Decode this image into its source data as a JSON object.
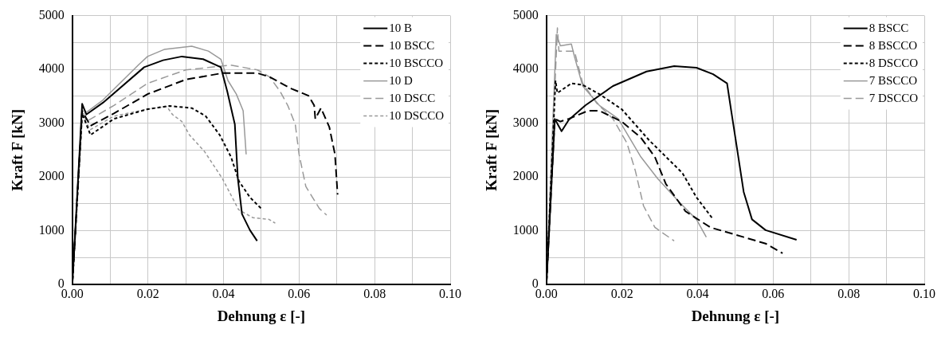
{
  "chart_data": [
    {
      "type": "line",
      "xlabel": "Dehnung ε [-]",
      "ylabel": "Kraft F [kN]",
      "xlim": [
        0,
        0.1
      ],
      "ylim": [
        0,
        5000
      ],
      "xticks": [
        {
          "value": 0,
          "label": "0.00"
        },
        {
          "value": 0.01,
          "label": null
        },
        {
          "value": 0.02,
          "label": "0.02"
        },
        {
          "value": 0.03,
          "label": null
        },
        {
          "value": 0.04,
          "label": "0.04"
        },
        {
          "value": 0.05,
          "label": null
        },
        {
          "value": 0.06,
          "label": "0.06"
        },
        {
          "value": 0.07,
          "label": null
        },
        {
          "value": 0.08,
          "label": "0.08"
        },
        {
          "value": 0.09,
          "label": null
        },
        {
          "value": 0.1,
          "label": "0.10"
        }
      ],
      "yticks": [
        0,
        {
          "value": 500,
          "label": null
        },
        1000,
        {
          "value": 1500,
          "label": null
        },
        2000,
        {
          "value": 2500,
          "label": null
        },
        3000,
        {
          "value": 3500,
          "label": null
        },
        4000,
        {
          "value": 4500,
          "label": null
        },
        5000
      ],
      "grid": true,
      "legend": "top right",
      "series": [
        {
          "name": "10 B",
          "color": "#000000",
          "line_style": "solid",
          "x": [
            0,
            0.0026,
            0.0037,
            0.0081,
            0.019,
            0.024,
            0.029,
            0.0346,
            0.0393,
            0.041,
            0.043,
            0.0438,
            0.0449,
            0.047,
            0.0489
          ],
          "values": [
            0,
            3360,
            3160,
            3380,
            4040,
            4170,
            4240,
            4190,
            4040,
            3590,
            2980,
            1970,
            1310,
            1010,
            810
          ]
        },
        {
          "name": "10 BSCC",
          "color": "#000000",
          "line_style": "dashed",
          "x": [
            0,
            0.0026,
            0.0048,
            0.011,
            0.0199,
            0.03,
            0.0397,
            0.049,
            0.0522,
            0.058,
            0.0625,
            0.064,
            0.0643,
            0.0658,
            0.068,
            0.0695,
            0.0702
          ],
          "values": [
            0,
            3230,
            2950,
            3180,
            3540,
            3810,
            3930,
            3930,
            3860,
            3640,
            3510,
            3330,
            3080,
            3280,
            2930,
            2420,
            1670
          ]
        },
        {
          "name": "10 BSCCO",
          "color": "#000000",
          "line_style": "dotted",
          "x": [
            0,
            0.0026,
            0.0048,
            0.011,
            0.0199,
            0.0257,
            0.0316,
            0.0353,
            0.039,
            0.042,
            0.0441,
            0.047,
            0.05
          ],
          "values": [
            0,
            3180,
            2780,
            3080,
            3260,
            3320,
            3280,
            3130,
            2780,
            2370,
            1920,
            1620,
            1410
          ]
        },
        {
          "name": "10 D",
          "color": "#999999",
          "line_style": "solid",
          "x": [
            0,
            0.0026,
            0.0037,
            0.0081,
            0.0176,
            0.0199,
            0.0243,
            0.0316,
            0.036,
            0.0393,
            0.0412,
            0.0434,
            0.0452,
            0.046
          ],
          "values": [
            0,
            3330,
            3200,
            3430,
            4090,
            4240,
            4370,
            4430,
            4340,
            4190,
            3790,
            3540,
            3230,
            2420
          ]
        },
        {
          "name": "10 DSCC",
          "color": "#999999",
          "line_style": "dashed",
          "x": [
            0,
            0.0026,
            0.0037,
            0.011,
            0.0199,
            0.03,
            0.0419,
            0.049,
            0.0522,
            0.055,
            0.057,
            0.059,
            0.06,
            0.0618,
            0.0654,
            0.0673
          ],
          "values": [
            0,
            3260,
            3030,
            3330,
            3740,
            3990,
            4080,
            3990,
            3860,
            3590,
            3330,
            2980,
            2420,
            1820,
            1410,
            1290
          ]
        },
        {
          "name": "10 DSCCO",
          "color": "#999999",
          "line_style": "dotted",
          "x": [
            0,
            0.0026,
            0.0048,
            0.011,
            0.0199,
            0.025,
            0.0265,
            0.029,
            0.031,
            0.035,
            0.0397,
            0.044,
            0.0478,
            0.052,
            0.0537
          ],
          "values": [
            0,
            3130,
            2880,
            3130,
            3260,
            3310,
            3160,
            3030,
            2780,
            2470,
            1970,
            1390,
            1240,
            1210,
            1140
          ]
        }
      ]
    },
    {
      "type": "line",
      "xlabel": "Dehnung ε [-]",
      "ylabel": "Kraft F [kN]",
      "xlim": [
        0,
        0.1
      ],
      "ylim": [
        0,
        5000
      ],
      "xticks": [
        {
          "value": 0,
          "label": "0.00"
        },
        {
          "value": 0.01,
          "label": null
        },
        {
          "value": 0.02,
          "label": "0.02"
        },
        {
          "value": 0.03,
          "label": null
        },
        {
          "value": 0.04,
          "label": "0.04"
        },
        {
          "value": 0.05,
          "label": null
        },
        {
          "value": 0.06,
          "label": "0.06"
        },
        {
          "value": 0.07,
          "label": null
        },
        {
          "value": 0.08,
          "label": "0.08"
        },
        {
          "value": 0.09,
          "label": null
        },
        {
          "value": 0.1,
          "label": "0.10"
        }
      ],
      "yticks": [
        0,
        {
          "value": 500,
          "label": null
        },
        1000,
        {
          "value": 1500,
          "label": null
        },
        2000,
        {
          "value": 2500,
          "label": null
        },
        3000,
        {
          "value": 3500,
          "label": null
        },
        4000,
        {
          "value": 4500,
          "label": null
        },
        5000
      ],
      "grid": true,
      "legend": "top right",
      "series": [
        {
          "name": "8 BSCC",
          "color": "#000000",
          "line_style": "solid",
          "x": [
            0,
            0.0022,
            0.004,
            0.0059,
            0.0103,
            0.0176,
            0.0265,
            0.0338,
            0.0397,
            0.0441,
            0.0478,
            0.0489,
            0.05,
            0.0522,
            0.0544,
            0.058,
            0.0662
          ],
          "values": [
            0,
            3080,
            2850,
            3060,
            3330,
            3690,
            3960,
            4060,
            4030,
            3910,
            3740,
            3230,
            2730,
            1720,
            1210,
            1010,
            830
          ]
        },
        {
          "name": "8 BSCCO",
          "color": "#000000",
          "line_style": "dashed",
          "x": [
            0,
            0.0022,
            0.0037,
            0.0059,
            0.011,
            0.014,
            0.0199,
            0.025,
            0.0287,
            0.0316,
            0.0368,
            0.0434,
            0.0522,
            0.058,
            0.0625
          ],
          "values": [
            0,
            3080,
            3030,
            3080,
            3230,
            3230,
            3030,
            2730,
            2370,
            1870,
            1360,
            1060,
            880,
            760,
            580
          ]
        },
        {
          "name": "8 DSCCO",
          "color": "#000000",
          "line_style": "dotted",
          "x": [
            0,
            0.0024,
            0.0029,
            0.0066,
            0.0096,
            0.014,
            0.0199,
            0.0272,
            0.0324,
            0.036,
            0.0397,
            0.0438
          ],
          "values": [
            0,
            3790,
            3560,
            3740,
            3710,
            3540,
            3260,
            2680,
            2320,
            2070,
            1620,
            1240
          ]
        },
        {
          "name": "7 BSCCO",
          "color": "#999999",
          "line_style": "solid",
          "x": [
            0,
            0.0026,
            0.0037,
            0.0066,
            0.0074,
            0.0096,
            0.014,
            0.019,
            0.025,
            0.0294,
            0.0353,
            0.0397,
            0.0423
          ],
          "values": [
            0,
            4650,
            4440,
            4470,
            4240,
            3690,
            3330,
            3080,
            2370,
            1970,
            1520,
            1210,
            880
          ]
        },
        {
          "name": "7 DSCCO",
          "color": "#999999",
          "line_style": "dashed",
          "x": [
            0,
            0.0029,
            0.0033,
            0.0074,
            0.0096,
            0.0132,
            0.0176,
            0.0213,
            0.0235,
            0.0257,
            0.0287,
            0.0338
          ],
          "values": [
            0,
            4770,
            4340,
            4340,
            3740,
            3380,
            3080,
            2630,
            2120,
            1460,
            1060,
            810
          ]
        }
      ]
    }
  ]
}
